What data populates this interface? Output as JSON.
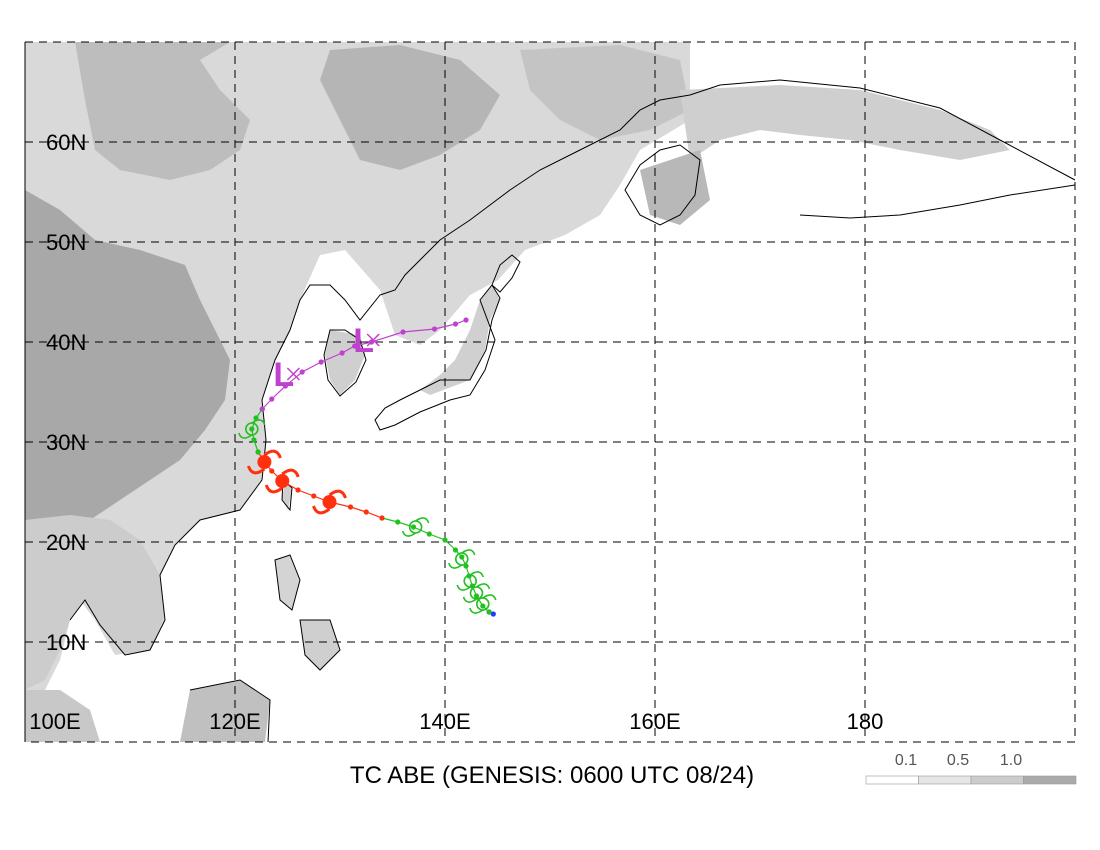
{
  "title": "TC ABE (GENESIS: 0600 UTC 08/24)",
  "map": {
    "lon_range": [
      100,
      200
    ],
    "lat_range": [
      0,
      70
    ],
    "lat_labels": [
      "10N",
      "20N",
      "30N",
      "40N",
      "50N",
      "60N"
    ],
    "lon_labels": [
      "100E",
      "120E",
      "140E",
      "160E",
      "180"
    ],
    "lat_values": [
      10,
      20,
      30,
      40,
      50,
      60
    ],
    "lon_values": [
      100,
      120,
      140,
      160,
      180
    ]
  },
  "legend": {
    "labels": [
      "0.1",
      "0.5",
      "1.0"
    ],
    "colors": [
      "#ffffff",
      "#e6e6e6",
      "#cccccc",
      "#aaaaaa"
    ]
  },
  "track": {
    "colors": {
      "depression": "#1e3cff",
      "storm": "#22c020",
      "typhoon": "#ff3010",
      "extratropical": "#c040d0"
    },
    "segments": [
      {
        "stage": "depression",
        "points": [
          [
            144.6,
            12.8
          ],
          [
            144.2,
            13.0
          ]
        ]
      },
      {
        "stage": "storm",
        "points": [
          [
            144.2,
            13.0
          ],
          [
            143.6,
            13.6
          ],
          [
            143.0,
            14.6
          ],
          [
            142.6,
            15.6
          ],
          [
            142.3,
            16.6
          ],
          [
            142.0,
            17.6
          ],
          [
            141.6,
            18.5
          ],
          [
            141.0,
            19.2
          ],
          [
            140.0,
            20.2
          ],
          [
            138.5,
            20.8
          ],
          [
            137.0,
            21.5
          ],
          [
            135.5,
            22.0
          ],
          [
            134.0,
            22.4
          ]
        ]
      },
      {
        "stage": "typhoon",
        "points": [
          [
            134.0,
            22.4
          ],
          [
            132.5,
            23.0
          ],
          [
            131.0,
            23.5
          ],
          [
            129.0,
            24.0
          ],
          [
            127.5,
            24.6
          ],
          [
            126.0,
            25.2
          ],
          [
            124.5,
            26.1
          ],
          [
            123.5,
            27.1
          ],
          [
            122.8,
            28.0
          ],
          [
            122.2,
            29.0
          ]
        ]
      },
      {
        "stage": "storm",
        "points": [
          [
            122.2,
            29.0
          ],
          [
            121.8,
            30.2
          ],
          [
            121.6,
            31.3
          ],
          [
            122.0,
            32.4
          ],
          [
            122.6,
            33.3
          ]
        ]
      },
      {
        "stage": "extratropical",
        "points": [
          [
            122.6,
            33.3
          ],
          [
            123.5,
            34.3
          ],
          [
            124.8,
            35.6
          ],
          [
            126.4,
            37.0
          ],
          [
            128.2,
            38.0
          ],
          [
            130.2,
            38.9
          ],
          [
            131.4,
            39.6
          ],
          [
            133.0,
            40.0
          ],
          [
            136.0,
            41.0
          ],
          [
            139.0,
            41.3
          ],
          [
            141.0,
            41.8
          ],
          [
            142.0,
            42.2
          ]
        ]
      }
    ],
    "symbols": [
      {
        "stage": "storm",
        "lon": 143.6,
        "lat": 13.8
      },
      {
        "stage": "storm",
        "lon": 143.0,
        "lat": 14.9
      },
      {
        "stage": "storm",
        "lon": 142.4,
        "lat": 16.1
      },
      {
        "stage": "storm",
        "lon": 141.6,
        "lat": 18.3
      },
      {
        "stage": "storm",
        "lon": 137.2,
        "lat": 21.5
      },
      {
        "stage": "typhoon",
        "lon": 129.0,
        "lat": 24.0
      },
      {
        "stage": "typhoon",
        "lon": 124.5,
        "lat": 26.1
      },
      {
        "stage": "typhoon",
        "lon": 122.8,
        "lat": 28.0
      },
      {
        "stage": "storm",
        "lon": 121.6,
        "lat": 31.3
      },
      {
        "stage": "extratropical",
        "lon": 124.8,
        "lat": 36.8,
        "letter": "L"
      },
      {
        "stage": "extratropical",
        "lon": 132.4,
        "lat": 40.2,
        "letter": "L"
      }
    ]
  }
}
